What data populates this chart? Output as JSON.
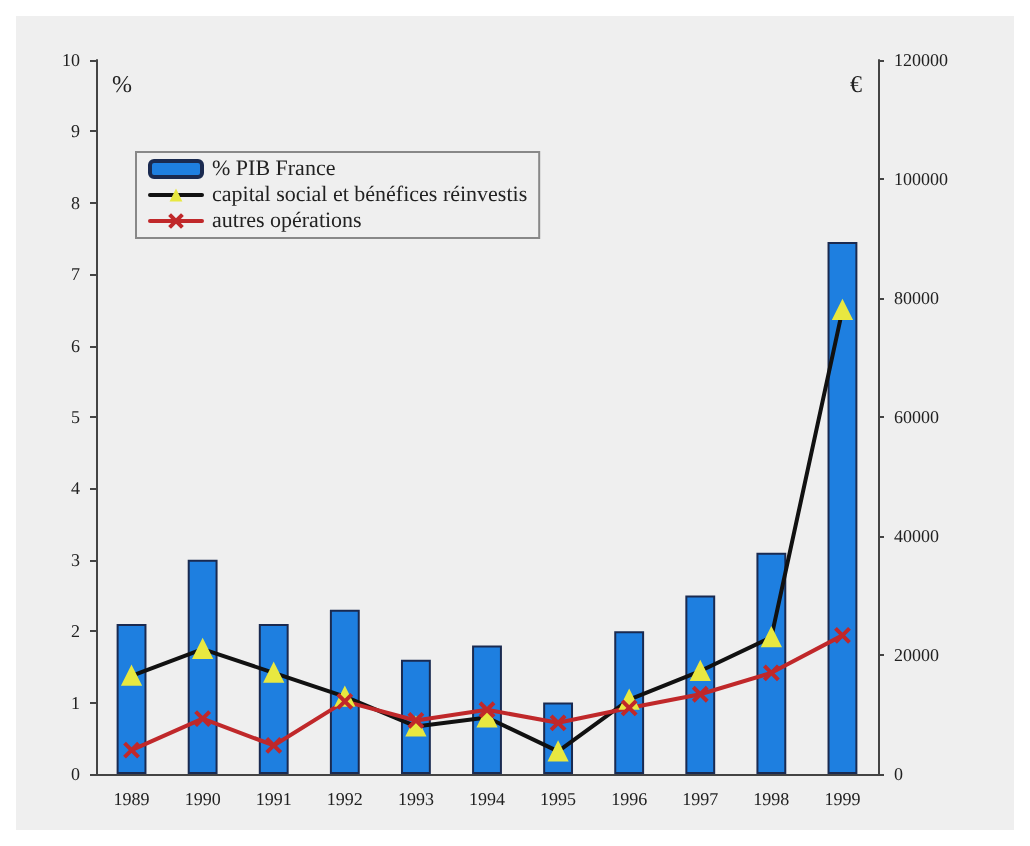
{
  "chart_data": {
    "type": "bar",
    "ylabel": "%",
    "y2label": "€",
    "categories": [
      "1989",
      "1990",
      "1991",
      "1992",
      "1993",
      "1994",
      "1995",
      "1996",
      "1997",
      "1998",
      "1999"
    ],
    "series": [
      {
        "name": "% PIB France",
        "color": "#1e7fe0",
        "values": [
          2.1,
          3.0,
          2.1,
          2.3,
          1.6,
          1.8,
          1.0,
          2.0,
          2.5,
          3.1,
          7.45
        ]
      },
      {
        "name": "capital social et bénéfices réinvestis",
        "type": "line",
        "axis": "y2",
        "color": "#111111",
        "marker": "triangle",
        "values": [
          16500,
          21000,
          17000,
          13000,
          8000,
          9500,
          3800,
          12500,
          17300,
          23000,
          78000
        ]
      },
      {
        "name": "autres opérations",
        "type": "line",
        "axis": "y2",
        "color": "#c0282a",
        "marker": "cross",
        "values": [
          4000,
          9300,
          4800,
          12200,
          9000,
          10800,
          8600,
          11100,
          13400,
          17000,
          23300
        ]
      }
    ],
    "ylim": [
      0,
      10
    ],
    "yticks": [
      0,
      1,
      2,
      3,
      4,
      5,
      6,
      7,
      8,
      9,
      10
    ],
    "y2lim": [
      0,
      120000
    ],
    "y2ticks": [
      0,
      20000,
      40000,
      60000,
      80000,
      100000,
      120000
    ],
    "grid": false,
    "legend": "top left"
  }
}
